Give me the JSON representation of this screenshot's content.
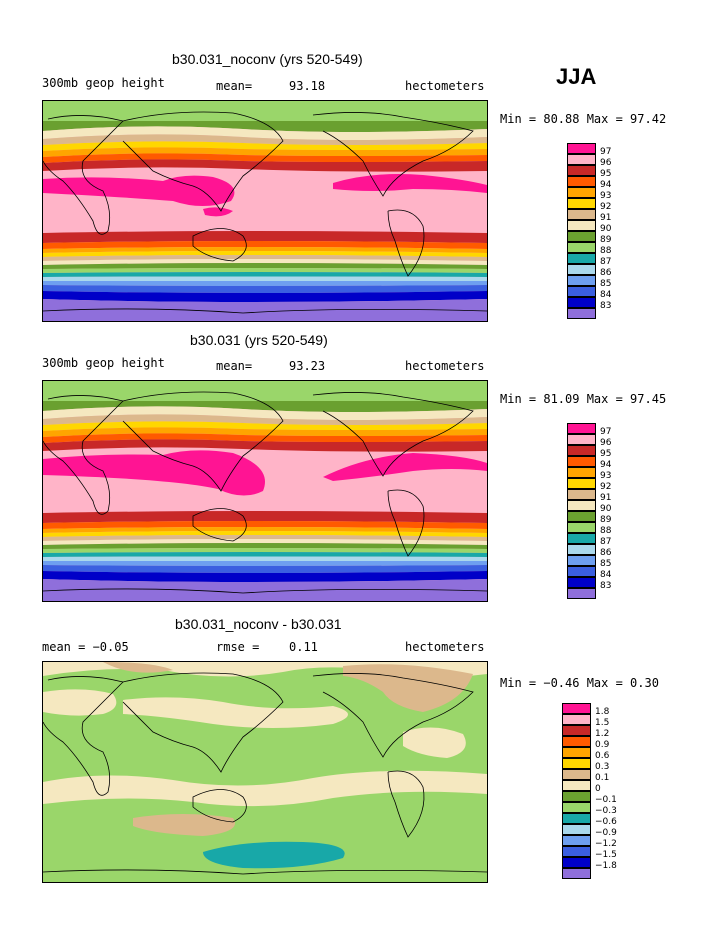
{
  "season": "JJA",
  "panels": [
    {
      "title": "b30.031_noconv (yrs 520-549)",
      "left_label": "300mb geop height",
      "mean_label": "mean=",
      "mean_value": "93.18",
      "right_label": "hectometers",
      "range_text": "Min =  80.88 Max =   97.42",
      "colorbar": {
        "colors": [
          "#8f6fdb",
          "#0000c8",
          "#3b5fe0",
          "#6e9ff0",
          "#aad8ec",
          "#18a8a8",
          "#9ad66a",
          "#6aa030",
          "#f5e8c0",
          "#dcb88c",
          "#ffd700",
          "#ffa500",
          "#ff5a00",
          "#c82828",
          "#ffb4c8",
          "#ff1493"
        ],
        "labels": [
          "97",
          "96",
          "95",
          "94",
          "93",
          "92",
          "91",
          "90",
          "89",
          "88",
          "87",
          "86",
          "85",
          "84",
          "83"
        ]
      }
    },
    {
      "title": "b30.031 (yrs 520-549)",
      "left_label": "300mb geop height",
      "mean_label": "mean=",
      "mean_value": "93.23",
      "right_label": "hectometers",
      "range_text": "Min =  81.09 Max =   97.45",
      "colorbar": {
        "colors": [
          "#8f6fdb",
          "#0000c8",
          "#3b5fe0",
          "#6e9ff0",
          "#aad8ec",
          "#18a8a8",
          "#9ad66a",
          "#6aa030",
          "#f5e8c0",
          "#dcb88c",
          "#ffd700",
          "#ffa500",
          "#ff5a00",
          "#c82828",
          "#ffb4c8",
          "#ff1493"
        ],
        "labels": [
          "97",
          "96",
          "95",
          "94",
          "93",
          "92",
          "91",
          "90",
          "89",
          "88",
          "87",
          "86",
          "85",
          "84",
          "83"
        ]
      }
    },
    {
      "title": "b30.031_noconv - b30.031",
      "left_label": "mean =  −0.05",
      "mean_label": "rmse =",
      "mean_value": "0.11",
      "right_label": "hectometers",
      "range_text": "Min =  −0.46 Max =    0.30",
      "colorbar": {
        "colors": [
          "#8f6fdb",
          "#0000c8",
          "#3b5fe0",
          "#6e9ff0",
          "#aad8ec",
          "#18a8a8",
          "#9ad66a",
          "#6aa030",
          "#f5e8c0",
          "#dcb88c",
          "#ffd700",
          "#ffa500",
          "#ff5a00",
          "#c82828",
          "#ffb4c8",
          "#ff1493"
        ],
        "labels": [
          "1.8",
          "1.5",
          "1.2",
          "0.9",
          "0.6",
          "0.3",
          "0.1",
          "0",
          "−0.1",
          "−0.3",
          "−0.6",
          "−0.9",
          "−1.2",
          "−1.5",
          "−1.8"
        ]
      }
    }
  ]
}
